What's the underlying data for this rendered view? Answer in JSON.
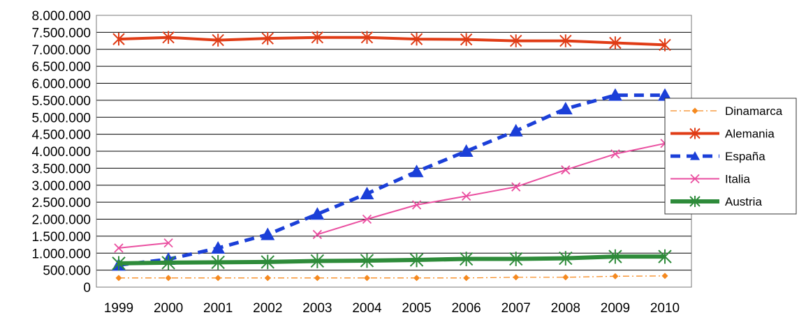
{
  "chart_data": {
    "type": "line",
    "title": "",
    "xlabel": "",
    "ylabel": "",
    "x": [
      "1999",
      "2000",
      "2001",
      "2002",
      "2003",
      "2004",
      "2005",
      "2006",
      "2007",
      "2008",
      "2009",
      "2010"
    ],
    "ylim": [
      0,
      8000000
    ],
    "yticks": [
      0,
      500000,
      1000000,
      1500000,
      2000000,
      2500000,
      3000000,
      3500000,
      4000000,
      4500000,
      5000000,
      5500000,
      6000000,
      6500000,
      7000000,
      7500000,
      8000000
    ],
    "ytick_labels": [
      "0",
      "500.000",
      "1.000.000",
      "1.500.000",
      "2.000.000",
      "2.500.000",
      "3.000.000",
      "3.500.000",
      "4.000.000",
      "4.500.000",
      "5.000.000",
      "5.500.000",
      "6.000.000",
      "6.500.000",
      "7.000.000",
      "7.500.000",
      "8.000.000"
    ],
    "grid": true,
    "legend_position": "right",
    "series": [
      {
        "name": "Dinamarca",
        "color": "#f5891f",
        "marker": "diamond",
        "dash": "dashdot",
        "values": [
          270000,
          270000,
          270000,
          270000,
          270000,
          270000,
          270000,
          270000,
          290000,
          290000,
          320000,
          330000
        ]
      },
      {
        "name": "Alemania",
        "color": "#e03c16",
        "marker": "asterisk",
        "dash": "solid",
        "values": [
          7300000,
          7350000,
          7270000,
          7320000,
          7350000,
          7350000,
          7300000,
          7290000,
          7250000,
          7250000,
          7190000,
          7130000
        ]
      },
      {
        "name": "España",
        "color": "#1b3fd8",
        "marker": "triangle",
        "dash": "dashed",
        "values": [
          650000,
          820000,
          1150000,
          1550000,
          2150000,
          2750000,
          3400000,
          4000000,
          4600000,
          5250000,
          5650000,
          5650000
        ]
      },
      {
        "name": "Italia",
        "color": "#ea4fa0",
        "marker": "x",
        "dash": "solid",
        "values": [
          1150000,
          1300000,
          null,
          null,
          1550000,
          2000000,
          2420000,
          2680000,
          2950000,
          3450000,
          3920000,
          4230000
        ]
      },
      {
        "name": "Austria",
        "color": "#2e8b3a",
        "marker": "asterisk",
        "dash": "solid",
        "values": [
          700000,
          720000,
          730000,
          740000,
          770000,
          780000,
          800000,
          830000,
          830000,
          850000,
          900000,
          900000
        ]
      }
    ]
  }
}
